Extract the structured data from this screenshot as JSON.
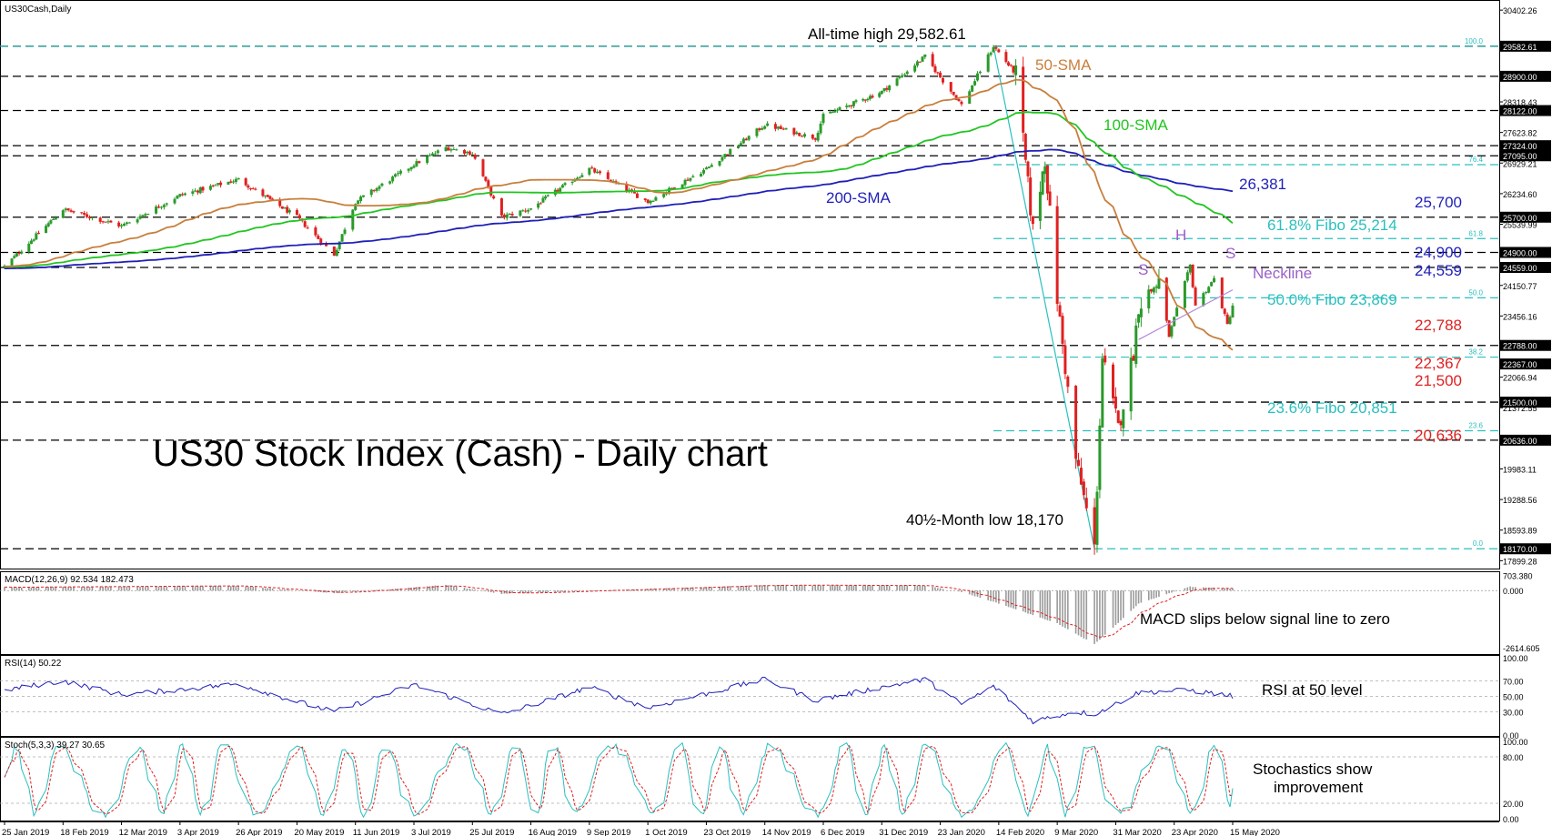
{
  "chart_data": [
    {
      "type": "candlestick",
      "symbol_label": "US30Cash,Daily",
      "title": "US30 Stock Index (Cash) - Daily chart",
      "y_ticks": [
        30402.26,
        29582.61,
        28900.0,
        28318.43,
        28122.0,
        27623.82,
        27324.0,
        27095.0,
        26929.21,
        26234.6,
        25700.0,
        25539.99,
        24900.0,
        24559.0,
        24150.77,
        23456.16,
        22788.0,
        22367.0,
        22066.94,
        21500.0,
        21372.55,
        20636.0,
        19983.11,
        19288.56,
        18593.89,
        18170.0,
        17899.28
      ],
      "highlighted_y_ticks": [
        29582.61,
        28900.0,
        28122.0,
        27324.0,
        27095.0,
        25700.0,
        24900.0,
        24559.0,
        22788.0,
        22367.0,
        21500.0,
        20636.0,
        18170.0
      ],
      "ylim": [
        17700,
        30550
      ],
      "x_ticks": [
        "25 Jan 2019",
        "18 Feb 2019",
        "12 Mar 2019",
        "3 Apr 2019",
        "26 Apr 2019",
        "20 May 2019",
        "11 Jun 2019",
        "3 Jul 2019",
        "25 Jul 2019",
        "16 Aug 2019",
        "9 Sep 2019",
        "1 Oct 2019",
        "23 Oct 2019",
        "14 Nov 2019",
        "6 Dec 2019",
        "31 Dec 2019",
        "23 Jan 2020",
        "14 Feb 2020",
        "9 Mar 2020",
        "31 Mar 2020",
        "23 Apr 2020",
        "15 May 2020"
      ],
      "fib_levels": [
        {
          "pct": "100.0",
          "value": 29582.61
        },
        {
          "pct": "76.4",
          "value": 26893
        },
        {
          "pct": "61.8",
          "value": 25214
        },
        {
          "pct": "50.0",
          "value": 23869
        },
        {
          "pct": "38.2",
          "value": 22523
        },
        {
          "pct": "23.6",
          "value": 20851
        },
        {
          "pct": "0.0",
          "value": 18170
        }
      ],
      "horizontal_levels": [
        29582.61,
        28900,
        28122,
        27324,
        27095,
        25700,
        24900,
        24559,
        22788,
        21500,
        20636,
        18170
      ],
      "key_points": [
        {
          "date": "25 Jan 2019",
          "close": 24580
        },
        {
          "date": "18 Feb 2019",
          "close": 25880
        },
        {
          "date": "12 Mar 2019",
          "close": 25500
        },
        {
          "date": "3 Apr 2019",
          "close": 26200
        },
        {
          "date": "26 Apr 2019",
          "close": 26560
        },
        {
          "date": "20 May 2019",
          "close": 25700
        },
        {
          "date": "3 Jun 2019",
          "close": 24850
        },
        {
          "date": "11 Jun 2019",
          "close": 26050
        },
        {
          "date": "3 Jul 2019",
          "close": 26900
        },
        {
          "date": "15 Jul 2019",
          "close": 27280
        },
        {
          "date": "25 Jul 2019",
          "close": 27150
        },
        {
          "date": "5 Aug 2019",
          "close": 25700
        },
        {
          "date": "16 Aug 2019",
          "close": 25900
        },
        {
          "date": "9 Sep 2019",
          "close": 26800
        },
        {
          "date": "1 Oct 2019",
          "close": 26050
        },
        {
          "date": "23 Oct 2019",
          "close": 26800
        },
        {
          "date": "14 Nov 2019",
          "close": 27800
        },
        {
          "date": "3 Dec 2019",
          "close": 27500
        },
        {
          "date": "6 Dec 2019",
          "close": 28000
        },
        {
          "date": "31 Dec 2019",
          "close": 28550
        },
        {
          "date": "17 Jan 2020",
          "close": 29350
        },
        {
          "date": "31 Jan 2020",
          "close": 28250
        },
        {
          "date": "12 Feb 2020",
          "close": 29582.61
        },
        {
          "date": "21 Feb 2020",
          "close": 28950
        },
        {
          "date": "28 Feb 2020",
          "close": 25400
        },
        {
          "date": "4 Mar 2020",
          "close": 27050
        },
        {
          "date": "9 Mar 2020",
          "close": 23850
        },
        {
          "date": "16 Mar 2020",
          "close": 20200
        },
        {
          "date": "23 Mar 2020",
          "close": 18170
        },
        {
          "date": "26 Mar 2020",
          "close": 22500
        },
        {
          "date": "1 Apr 2020",
          "close": 20900
        },
        {
          "date": "7 Apr 2020",
          "close": 22650
        },
        {
          "date": "9 Apr 2020",
          "close": 23700
        },
        {
          "date": "17 Apr 2020",
          "close": 24250
        },
        {
          "date": "21 Apr 2020",
          "close": 23000
        },
        {
          "date": "29 Apr 2020",
          "close": 24600
        },
        {
          "date": "1 May 2020",
          "close": 23700
        },
        {
          "date": "8 May 2020",
          "close": 24300
        },
        {
          "date": "13 May 2020",
          "close": 23250
        },
        {
          "date": "15 May 2020",
          "close": 23700
        }
      ],
      "moving_averages": [
        {
          "name": "50-SMA",
          "color": "#c87f3c"
        },
        {
          "name": "100-SMA",
          "color": "#22c522"
        },
        {
          "name": "200-SMA",
          "color": "#1f1fb8"
        }
      ],
      "annotations": {
        "all_time_high": "All-time high 29,582.61",
        "month_low": "40½-Month low 18,170",
        "sma50": "50-SMA",
        "sma100": "100-SMA",
        "sma200": "200-SMA",
        "sma200_value": "26,381",
        "fib618": "61.8% Fibo 25,214",
        "fib50": "50.0% Fibo 23,869",
        "fib236": "23.6% Fibo 20,851",
        "lvl25700": "25,700",
        "lvl24900": "24,900",
        "lvl24559": "24,559",
        "lvl22788": "22,788",
        "lvl22367": "22,367",
        "lvl21500": "21,500",
        "lvl20636": "20,636",
        "hs_s": "S",
        "hs_h": "H",
        "neckline": "Neckline"
      },
      "colors": {
        "bull": "#2a9a2a",
        "bear": "#e02020",
        "blue_text": "#1f1fb8",
        "red_text": "#e02020",
        "cyan_text": "#2bbfbf",
        "purple_text": "#9c5fc9",
        "level_line": "#000000",
        "fib_line": "#2bbfbf"
      }
    },
    {
      "type": "bar",
      "indicator": "MACD",
      "label": "MACD(12,26,9) 92.534 182.473",
      "y_ticks": [
        703.38,
        0.0,
        -2614.605
      ],
      "ylim": [
        -2780,
        800
      ],
      "annotation": "MACD slips below signal line to zero",
      "key_points_macd": [
        {
          "date": "25 Jan 2019",
          "value": 150
        },
        {
          "date": "26 Apr 2019",
          "value": 220
        },
        {
          "date": "3 Jun 2019",
          "value": -120
        },
        {
          "date": "15 Jul 2019",
          "value": 260
        },
        {
          "date": "5 Aug 2019",
          "value": -150
        },
        {
          "date": "14 Nov 2019",
          "value": 250
        },
        {
          "date": "17 Jan 2020",
          "value": 230
        },
        {
          "date": "31 Jan 2020",
          "value": -60
        },
        {
          "date": "9 Mar 2020",
          "value": -1500
        },
        {
          "date": "23 Mar 2020",
          "value": -2450
        },
        {
          "date": "9 Apr 2020",
          "value": -600
        },
        {
          "date": "29 Apr 2020",
          "value": 180
        },
        {
          "date": "15 May 2020",
          "value": 92.534
        }
      ],
      "signal_last": 182.473
    },
    {
      "type": "line",
      "indicator": "RSI",
      "label": "RSI(14) 50.22",
      "y_ticks": [
        100.0,
        70.0,
        50.0,
        30.0,
        0.0
      ],
      "ylim": [
        0,
        100
      ],
      "annotation": "RSI at 50 level",
      "key_points": [
        {
          "date": "25 Jan 2019",
          "value": 58
        },
        {
          "date": "18 Feb 2019",
          "value": 70
        },
        {
          "date": "12 Mar 2019",
          "value": 52
        },
        {
          "date": "26 Apr 2019",
          "value": 66
        },
        {
          "date": "3 Jun 2019",
          "value": 30
        },
        {
          "date": "3 Jul 2019",
          "value": 65
        },
        {
          "date": "5 Aug 2019",
          "value": 27
        },
        {
          "date": "9 Sep 2019",
          "value": 62
        },
        {
          "date": "1 Oct 2019",
          "value": 35
        },
        {
          "date": "14 Nov 2019",
          "value": 72
        },
        {
          "date": "3 Dec 2019",
          "value": 45
        },
        {
          "date": "17 Jan 2020",
          "value": 72
        },
        {
          "date": "31 Jan 2020",
          "value": 40
        },
        {
          "date": "12 Feb 2020",
          "value": 63
        },
        {
          "date": "28 Feb 2020",
          "value": 18
        },
        {
          "date": "16 Mar 2020",
          "value": 30
        },
        {
          "date": "23 Mar 2020",
          "value": 27
        },
        {
          "date": "9 Apr 2020",
          "value": 55
        },
        {
          "date": "29 Apr 2020",
          "value": 58
        },
        {
          "date": "15 May 2020",
          "value": 50.22
        }
      ]
    },
    {
      "type": "line",
      "indicator": "Stochastic",
      "label": "Stoch(5,3,3) 39.27 30.65",
      "y_ticks": [
        100.0,
        80.0,
        20.0,
        0.0
      ],
      "ylim": [
        0,
        100
      ],
      "annotation_lines": [
        "Stochastics show",
        "improvement"
      ],
      "k_last": 39.27,
      "d_last": 30.65
    }
  ]
}
